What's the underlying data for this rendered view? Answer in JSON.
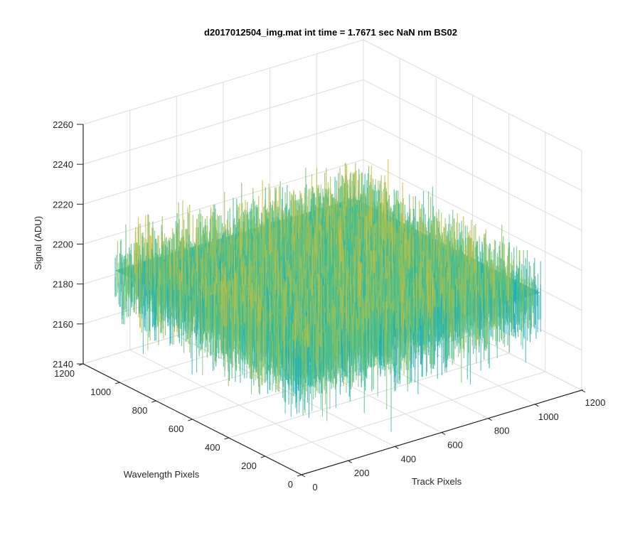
{
  "chart_data": {
    "type": "surface",
    "title": "d2017012504_img.mat int time = 1.7671 sec  NaN nm BS02",
    "xlabel": "Track Pixels",
    "ylabel": "Wavelength Pixels",
    "zlabel": "Signal (ADU)",
    "x_ticks": [
      "0",
      "200",
      "400",
      "600",
      "800",
      "1000",
      "1200"
    ],
    "y_ticks": [
      "0",
      "200",
      "400",
      "600",
      "800",
      "1000",
      "1200"
    ],
    "z_ticks": [
      "2140",
      "2160",
      "2180",
      "2200",
      "2220",
      "2240",
      "2260"
    ],
    "xlim": [
      0,
      1200
    ],
    "ylim": [
      0,
      1200
    ],
    "zlim": [
      2140,
      2260
    ],
    "grid": true,
    "colormap": "parula",
    "colormap_stops": [
      "#0d6fd8",
      "#1a9ad6",
      "#14b3b8",
      "#45bf8f",
      "#98c25a",
      "#d4bb32",
      "#e8c83a"
    ],
    "surface_summary": {
      "mean": 2195,
      "upper_envelope": 2245,
      "lower_envelope": 2148,
      "data_extent_x": [
        0,
        1024
      ],
      "data_extent_y": [
        0,
        1024
      ]
    }
  }
}
